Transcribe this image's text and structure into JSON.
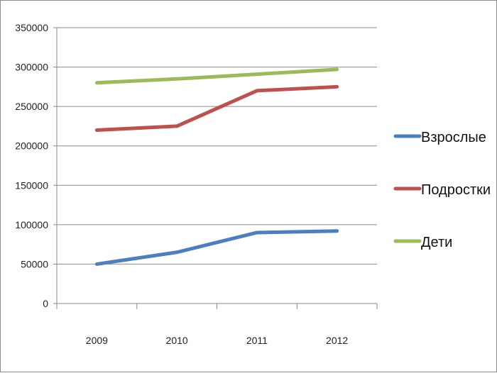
{
  "chart_data": {
    "type": "line",
    "title": "",
    "xlabel": "",
    "ylabel": "",
    "categories": [
      "2009",
      "2010",
      "2011",
      "2012"
    ],
    "ylim": [
      0,
      350000
    ],
    "yticks": [
      0,
      50000,
      100000,
      150000,
      200000,
      250000,
      300000,
      350000
    ],
    "ytick_labels": [
      "0",
      "50000",
      "100000",
      "150000",
      "200000",
      "250000",
      "300000",
      "350000"
    ],
    "grid": true,
    "legend_position": "right",
    "series": [
      {
        "name": "Взрослые",
        "color": "#4a7fc1",
        "values": [
          50000,
          65000,
          90000,
          92000
        ]
      },
      {
        "name": "Подростки",
        "color": "#c0504d",
        "values": [
          220000,
          225000,
          270000,
          275000
        ]
      },
      {
        "name": "Дети",
        "color": "#9bbb59",
        "values": [
          280000,
          285000,
          291000,
          297000
        ]
      }
    ]
  }
}
